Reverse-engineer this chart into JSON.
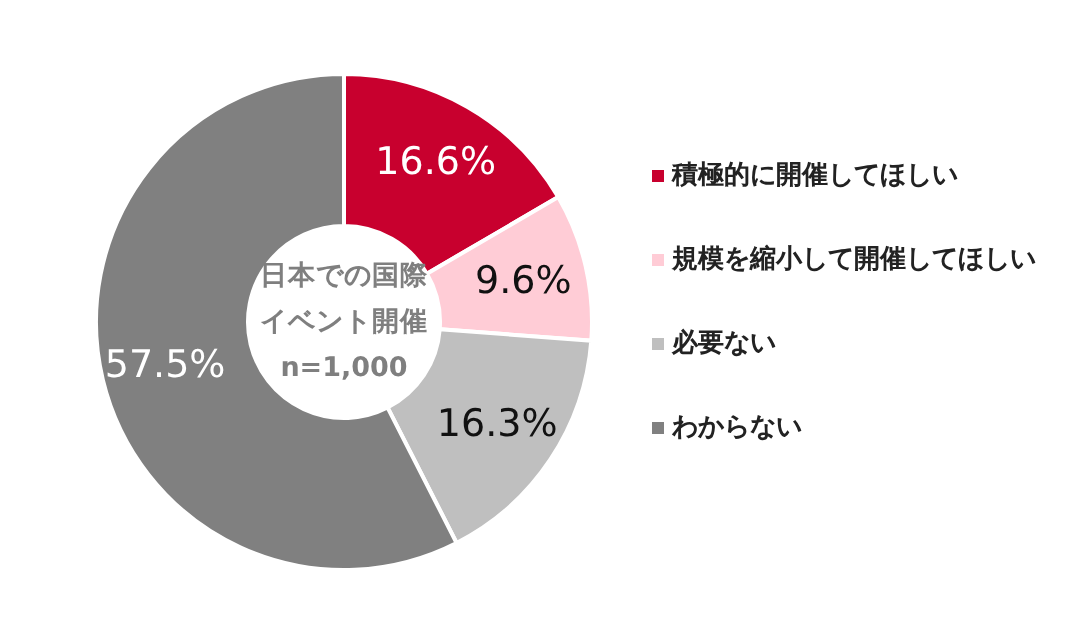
{
  "chart_data": {
    "type": "donut",
    "categories": [
      "積極的に開催してほしい",
      "規模を縮小して開催してほしい",
      "必要ない",
      "わからない"
    ],
    "values": [
      16.6,
      9.6,
      16.3,
      57.5
    ],
    "colors": [
      "#c8002e",
      "#ffccd6",
      "#bfbfbf",
      "#808080"
    ],
    "value_labels": [
      "16.6%",
      "9.6%",
      "16.3%",
      "57.5%"
    ],
    "annotations": [
      "日本での国際",
      "イベント開催",
      "n=1,000"
    ],
    "legend": "right"
  }
}
